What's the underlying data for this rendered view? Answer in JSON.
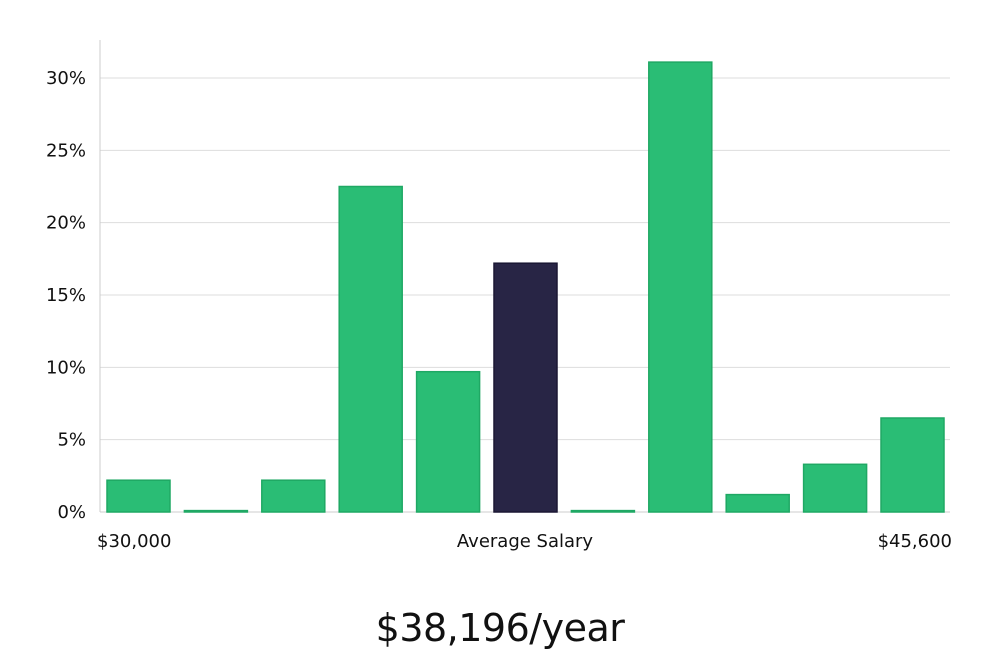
{
  "chart_data": {
    "type": "bar",
    "ylim": [
      0,
      33
    ],
    "y_ticks": [
      "0%",
      "5%",
      "10%",
      "15%",
      "20%",
      "25%",
      "30%"
    ],
    "y_tick_values": [
      0,
      5,
      10,
      15,
      20,
      25,
      30
    ],
    "values": [
      2.2,
      0.1,
      2.2,
      22.5,
      9.7,
      17.2,
      0.1,
      31.1,
      1.2,
      3.3,
      6.5
    ],
    "highlight_index": 5,
    "x_min_label": "$30,000",
    "x_max_label": "$45,600",
    "xlabel": "Average Salary",
    "grid": true
  },
  "colors": {
    "bar": "#2abd75",
    "bar_stroke": "#1fa864",
    "highlight": "#282545",
    "grid": "#dddddd",
    "axis": "#cccccc"
  },
  "summary": {
    "text": "$38,196/year"
  }
}
